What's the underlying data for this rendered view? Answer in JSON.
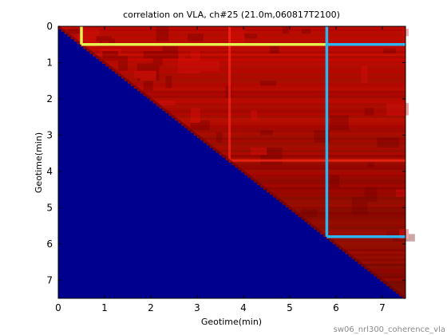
{
  "chart_data": {
    "type": "heatmap",
    "title": "correlation on VLA, ch#25 (21.0m,060817T2100)",
    "xlabel": "Geotime(min)",
    "ylabel": "Geotime(min)",
    "xlim": [
      0,
      7.5
    ],
    "ylim": [
      7.5,
      0
    ],
    "xticks": [
      "0",
      "1",
      "2",
      "3",
      "4",
      "5",
      "6",
      "7"
    ],
    "yticks": [
      "0",
      "1",
      "2",
      "3",
      "4",
      "5",
      "6",
      "7"
    ],
    "grid": false,
    "legend": "none",
    "matrix_size": 110,
    "description_region_lower": "below diagonal filled with minimum value",
    "colors": {
      "lower_triangle": "#00008f",
      "upper_high": "#c00000",
      "upper_dark": "#800000",
      "marker_yellow": "#e6f050",
      "marker_cyan": "#30b4f0",
      "stripe_red": "#ff2a1a"
    },
    "markers": [
      {
        "color": "yellow",
        "x1": 0.5,
        "y1": 0,
        "x2": 0.5,
        "y2": 0.5
      },
      {
        "color": "yellow",
        "x1": 0.5,
        "y1": 0.5,
        "x2": 7.5,
        "y2": 0.5
      },
      {
        "color": "cyan",
        "x1": 5.8,
        "y1": 0,
        "x2": 5.8,
        "y2": 5.8
      },
      {
        "color": "cyan",
        "x1": 5.8,
        "y1": 5.8,
        "x2": 7.5,
        "y2": 5.8
      },
      {
        "color": "cyan",
        "x1": 5.8,
        "y1": 0.5,
        "x2": 7.5,
        "y2": 0.5
      }
    ],
    "stripes": [
      {
        "orientation": "vertical",
        "at": 3.7
      },
      {
        "orientation": "horizontal",
        "at": 3.7
      }
    ]
  },
  "footer": {
    "text": "sw06_nrl300_coherence_vla"
  }
}
